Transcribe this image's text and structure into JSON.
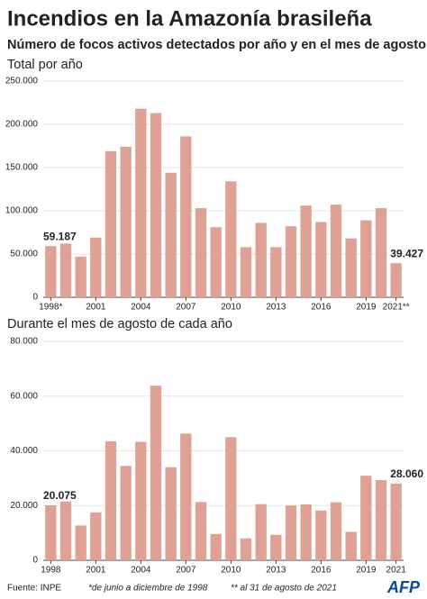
{
  "title": "Incendios en la Amazonía brasileña",
  "subtitle": "Número de focos activos detectados por año y en el mes de agosto",
  "source": "Fuente: INPE",
  "notes": [
    "*de junio a diciembre de 1998",
    "** al 31 de agosto de 2021"
  ],
  "logo": "AFP",
  "chart_data": [
    {
      "type": "bar",
      "title": "Total por año",
      "categories": [
        "1998*",
        null,
        null,
        "2001",
        null,
        null,
        "2004",
        null,
        null,
        "2007",
        null,
        null,
        "2010",
        null,
        null,
        "2013",
        null,
        null,
        "2016",
        null,
        null,
        "2019",
        null,
        "2021**"
      ],
      "values": [
        59187,
        62000,
        47000,
        69000,
        169000,
        174000,
        218000,
        213000,
        144000,
        186000,
        103000,
        81000,
        134000,
        58000,
        86000,
        58000,
        82000,
        106000,
        87000,
        107000,
        68000,
        89000,
        103000,
        39427
      ],
      "value_labels": [
        "59.187",
        null,
        null,
        null,
        null,
        null,
        null,
        null,
        null,
        null,
        null,
        null,
        null,
        null,
        null,
        null,
        null,
        null,
        null,
        null,
        null,
        null,
        null,
        "39.427"
      ],
      "color": "#e0a195",
      "ylim": [
        0,
        250000
      ],
      "yticks": [
        0,
        {
          "value": 50000,
          "label": "50.000"
        },
        {
          "value": 100000,
          "label": "100.000"
        },
        {
          "value": 150000,
          "label": "150.000"
        },
        {
          "value": 200000,
          "label": "200.000"
        },
        {
          "value": 250000,
          "label": "250.000"
        }
      ],
      "grid": true
    },
    {
      "type": "bar",
      "title": "Durante el mes de agosto de cada año",
      "categories": [
        "1998",
        null,
        null,
        "2001",
        null,
        null,
        "2004",
        null,
        null,
        "2007",
        null,
        null,
        "2010",
        null,
        null,
        "2013",
        null,
        null,
        "2016",
        null,
        null,
        "2019",
        null,
        "2021"
      ],
      "values": [
        20075,
        21500,
        12700,
        17500,
        43500,
        34500,
        43300,
        63800,
        34000,
        46300,
        21300,
        9600,
        45000,
        8000,
        20500,
        9300,
        20000,
        20400,
        18200,
        21200,
        10400,
        30900,
        29300,
        28060
      ],
      "value_labels": [
        "20.075",
        null,
        null,
        null,
        null,
        null,
        null,
        null,
        null,
        null,
        null,
        null,
        null,
        null,
        null,
        null,
        null,
        null,
        null,
        null,
        null,
        null,
        null,
        "28.060"
      ],
      "color": "#e0a195",
      "ylim": [
        0,
        80000
      ],
      "yticks": [
        0,
        {
          "value": 20000,
          "label": "20.000"
        },
        {
          "value": 40000,
          "label": "40.000"
        },
        {
          "value": 60000,
          "label": "60.000"
        },
        {
          "value": 80000,
          "label": "80.000"
        }
      ],
      "grid": true
    }
  ]
}
